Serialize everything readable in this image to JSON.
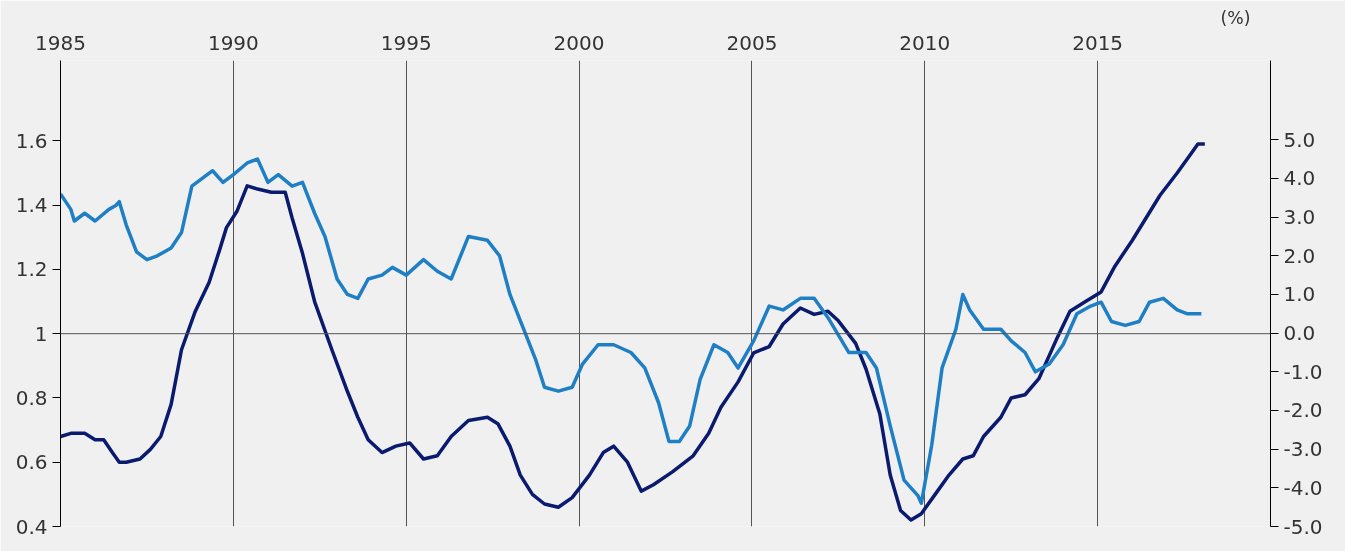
{
  "chart_data": {
    "type": "line",
    "y2label": "(%)",
    "xlim": [
      1985,
      2020
    ],
    "xticks": [
      1985,
      1990,
      1995,
      2000,
      2005,
      2010,
      2015
    ],
    "ylim": [
      0.4,
      1.85
    ],
    "yticks": [
      0.4,
      0.6,
      0.8,
      1.0,
      1.2,
      1.4,
      1.6
    ],
    "y2lim": [
      -5,
      7.05
    ],
    "y2ticks": [
      {
        "value": -5,
        "label": "-5.0"
      },
      {
        "value": -4,
        "label": "-4.0"
      },
      {
        "value": -3,
        "label": "-3.0"
      },
      {
        "value": -2,
        "label": "-2.0"
      },
      {
        "value": -1,
        "label": "-1.0"
      },
      {
        "value": 0,
        "label": "0.0"
      },
      {
        "value": 1,
        "label": "1.0"
      },
      {
        "value": 2,
        "label": "2.0"
      },
      {
        "value": 3,
        "label": "3.0"
      },
      {
        "value": 4,
        "label": "4.0"
      },
      {
        "value": 5,
        "label": "5.0"
      }
    ],
    "grid": "x",
    "marker": "none",
    "line_style": "solid",
    "ref_lines": [
      {
        "axis": "y",
        "value": 1.0,
        "label": null,
        "color": "#555555"
      }
    ],
    "series": [
      {
        "color": "#0a1a6e",
        "x": [
          1985.0,
          1985.3,
          1985.7,
          1986.0,
          1986.25,
          1986.5,
          1986.7,
          1986.9,
          1987.3,
          1987.6,
          1987.9,
          1988.2,
          1988.5,
          1988.9,
          1989.3,
          1989.6,
          1989.8,
          1990.1,
          1990.4,
          1990.7,
          1991.1,
          1991.5,
          1991.7,
          1992.0,
          1992.35,
          1992.85,
          1993.3,
          1993.6,
          1993.9,
          1994.3,
          1994.7,
          1995.1,
          1995.5,
          1995.9,
          1996.3,
          1996.8,
          1997.35,
          1997.65,
          1998.0,
          1998.3,
          1998.65,
          1999.0,
          1999.4,
          1999.8,
          2000.3,
          2000.7,
          2001.0,
          2001.4,
          2001.8,
          2002.15,
          2002.7,
          2003.3,
          2003.75,
          2004.1,
          2004.6,
          2005.05,
          2005.5,
          2005.9,
          2006.4,
          2006.8,
          2007.2,
          2007.5,
          2008.0,
          2008.3,
          2008.7,
          2009.0,
          2009.3,
          2009.6,
          2009.9,
          2010.3,
          2010.7,
          2011.1,
          2011.4,
          2011.7,
          2012.2,
          2012.5,
          2012.9,
          2013.3,
          2013.8,
          2014.2,
          2014.65,
          2015.1,
          2015.5,
          2016.0,
          2016.4,
          2016.8,
          2017.3,
          2017.7,
          2017.9,
          2018.1
        ],
        "values": [
          0.68,
          0.69,
          0.69,
          0.67,
          0.67,
          0.63,
          0.6,
          0.6,
          0.61,
          0.64,
          0.68,
          0.78,
          0.95,
          1.07,
          1.16,
          1.26,
          1.33,
          1.38,
          1.46,
          1.45,
          1.44,
          1.44,
          1.36,
          1.25,
          1.1,
          0.95,
          0.82,
          0.74,
          0.67,
          0.63,
          0.65,
          0.66,
          0.61,
          0.62,
          0.68,
          0.73,
          0.74,
          0.72,
          0.65,
          0.56,
          0.5,
          0.47,
          0.46,
          0.49,
          0.56,
          0.63,
          0.65,
          0.6,
          0.51,
          0.53,
          0.57,
          0.62,
          0.69,
          0.77,
          0.85,
          0.94,
          0.96,
          1.03,
          1.08,
          1.06,
          1.07,
          1.04,
          0.97,
          0.89,
          0.75,
          0.56,
          0.45,
          0.42,
          0.44,
          0.5,
          0.56,
          0.61,
          0.62,
          0.68,
          0.74,
          0.8,
          0.81,
          0.86,
          0.98,
          1.07,
          1.1,
          1.13,
          1.21,
          1.29,
          1.36,
          1.43,
          1.5,
          1.56,
          1.59,
          1.59
        ]
      },
      {
        "color": "#1f7fc4",
        "axis": "y2",
        "x": [
          1985.0,
          1985.3,
          1985.4,
          1985.7,
          1986.0,
          1986.4,
          1986.6,
          1986.7,
          1986.9,
          1987.2,
          1987.5,
          1987.8,
          1988.2,
          1988.5,
          1988.8,
          1989.1,
          1989.4,
          1989.7,
          1990.0,
          1990.4,
          1990.7,
          1991.0,
          1991.3,
          1991.7,
          1992.0,
          1992.35,
          1992.65,
          1993.0,
          1993.3,
          1993.6,
          1993.9,
          1994.3,
          1994.6,
          1995.0,
          1995.5,
          1995.9,
          1996.3,
          1996.8,
          1997.35,
          1997.7,
          1998.0,
          1998.4,
          1998.75,
          1999.0,
          1999.4,
          1999.8,
          2000.1,
          2000.55,
          2001.0,
          2001.5,
          2001.9,
          2002.3,
          2002.6,
          2002.9,
          2003.2,
          2003.5,
          2003.9,
          2004.3,
          2004.6,
          2005.05,
          2005.5,
          2005.9,
          2006.4,
          2006.8,
          2007.2,
          2007.8,
          2008.3,
          2008.6,
          2009.0,
          2009.4,
          2009.8,
          2009.9,
          2010.2,
          2010.5,
          2010.9,
          2011.1,
          2011.3,
          2011.7,
          2012.2,
          2012.5,
          2012.9,
          2013.2,
          2013.6,
          2014.0,
          2014.4,
          2014.8,
          2015.1,
          2015.4,
          2015.8,
          2016.2,
          2016.5,
          2016.9,
          2017.3,
          2017.6,
          2018.0
        ],
        "values": [
          3.6,
          3.2,
          2.9,
          3.1,
          2.9,
          3.2,
          3.3,
          3.4,
          2.8,
          2.1,
          1.9,
          2.0,
          2.2,
          2.6,
          3.8,
          4.0,
          4.2,
          3.9,
          4.1,
          4.4,
          4.5,
          3.9,
          4.1,
          3.8,
          3.9,
          3.1,
          2.5,
          1.4,
          1.0,
          0.9,
          1.4,
          1.5,
          1.7,
          1.5,
          1.9,
          1.6,
          1.4,
          2.5,
          2.4,
          2.0,
          1.0,
          0.1,
          -0.7,
          -1.4,
          -1.5,
          -1.4,
          -0.8,
          -0.3,
          -0.3,
          -0.5,
          -0.9,
          -1.8,
          -2.8,
          -2.8,
          -2.4,
          -1.2,
          -0.3,
          -0.5,
          -0.9,
          -0.2,
          0.7,
          0.6,
          0.9,
          0.9,
          0.4,
          -0.5,
          -0.5,
          -0.9,
          -2.4,
          -3.8,
          -4.2,
          -4.4,
          -2.9,
          -0.9,
          0.1,
          1.0,
          0.6,
          0.1,
          0.1,
          -0.2,
          -0.5,
          -1.0,
          -0.8,
          -0.3,
          0.5,
          0.7,
          0.8,
          0.3,
          0.2,
          0.3,
          0.8,
          0.9,
          0.6,
          0.5,
          0.5
        ]
      }
    ]
  }
}
